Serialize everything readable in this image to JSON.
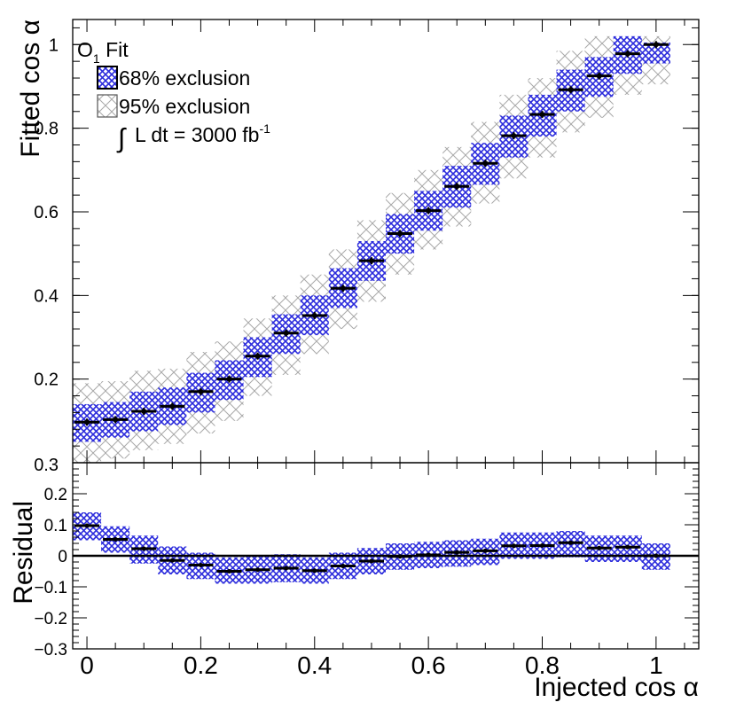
{
  "chart_data": [
    {
      "type": "scatter",
      "panel": "top",
      "title": "",
      "xlabel": "",
      "ylabel": "Fitted cos α",
      "xlim": [
        -0.025,
        1.075
      ],
      "ylim": [
        0.0,
        1.06
      ],
      "yticks": [
        0.2,
        0.4,
        0.6,
        0.8,
        1.0
      ],
      "ytick_labels": [
        "0.2",
        "0.4",
        "0.6",
        "0.8",
        "1"
      ],
      "bottom_partial_label": "0.3",
      "grid": false,
      "legend_position": "top-left",
      "legend": {
        "fit_label": "O",
        "fit_label_sub": "1",
        "fit_label_suffix": " Fit",
        "band68_label": "68% exclusion",
        "band95_label": "95% exclusion",
        "lumi_integral": "∫",
        "lumi_label": "L dt = 3000 fb",
        "lumi_sup": "-1"
      },
      "band_half_width": 0.025,
      "band68_color": "#2b2bdc",
      "band95_color": "#9a9a9a",
      "series": [
        {
          "name": "Fit",
          "x": [
            0,
            0.05,
            0.1,
            0.15,
            0.2,
            0.25,
            0.3,
            0.35,
            0.4,
            0.45,
            0.5,
            0.55,
            0.6,
            0.65,
            0.7,
            0.75,
            0.8,
            0.85,
            0.9,
            0.95,
            1.0
          ],
          "y": [
            0.097,
            0.103,
            0.123,
            0.135,
            0.17,
            0.2,
            0.255,
            0.31,
            0.352,
            0.417,
            0.483,
            0.548,
            0.603,
            0.661,
            0.716,
            0.782,
            0.833,
            0.892,
            0.925,
            0.978,
            1.0
          ],
          "band68": [
            [
              0.05,
              0.14
            ],
            [
              0.06,
              0.145
            ],
            [
              0.075,
              0.17
            ],
            [
              0.09,
              0.18
            ],
            [
              0.12,
              0.215
            ],
            [
              0.15,
              0.245
            ],
            [
              0.205,
              0.3
            ],
            [
              0.26,
              0.355
            ],
            [
              0.305,
              0.4
            ],
            [
              0.37,
              0.465
            ],
            [
              0.435,
              0.53
            ],
            [
              0.5,
              0.595
            ],
            [
              0.555,
              0.65
            ],
            [
              0.61,
              0.71
            ],
            [
              0.665,
              0.765
            ],
            [
              0.73,
              0.83
            ],
            [
              0.78,
              0.88
            ],
            [
              0.84,
              0.94
            ],
            [
              0.875,
              0.97
            ],
            [
              0.93,
              1.02
            ],
            [
              0.955,
              1.005
            ]
          ],
          "band95": [
            [
              0.0,
              0.19
            ],
            [
              0.01,
              0.195
            ],
            [
              0.03,
              0.22
            ],
            [
              0.045,
              0.225
            ],
            [
              0.07,
              0.265
            ],
            [
              0.1,
              0.29
            ],
            [
              0.16,
              0.345
            ],
            [
              0.21,
              0.4
            ],
            [
              0.26,
              0.45
            ],
            [
              0.32,
              0.51
            ],
            [
              0.385,
              0.58
            ],
            [
              0.45,
              0.645
            ],
            [
              0.51,
              0.7
            ],
            [
              0.565,
              0.755
            ],
            [
              0.62,
              0.815
            ],
            [
              0.68,
              0.88
            ],
            [
              0.73,
              0.92
            ],
            [
              0.79,
              0.985
            ],
            [
              0.825,
              1.02
            ],
            [
              0.88,
              1.02
            ],
            [
              0.905,
              1.02
            ]
          ]
        }
      ]
    },
    {
      "type": "scatter",
      "panel": "bottom",
      "title": "",
      "xlabel": "Injected cos α",
      "ylabel": "Residual",
      "xlim": [
        -0.025,
        1.075
      ],
      "ylim": [
        -0.3,
        0.3
      ],
      "yticks": [
        -0.3,
        -0.2,
        -0.1,
        0,
        0.1,
        0.2
      ],
      "ytick_labels": [
        "−0.3",
        "−0.2",
        "−0.1",
        "0",
        "0.1",
        "0.2"
      ],
      "xticks": [
        0,
        0.2,
        0.4,
        0.6,
        0.8,
        1
      ],
      "xtick_labels": [
        "0",
        "0.2",
        "0.4",
        "0.6",
        "0.8",
        "1"
      ],
      "grid": false,
      "reference_line": 0,
      "band_half_width": 0.025,
      "band_color": "#2b2bdc",
      "series": [
        {
          "name": "Residual",
          "x": [
            0,
            0.05,
            0.1,
            0.15,
            0.2,
            0.25,
            0.3,
            0.35,
            0.4,
            0.45,
            0.5,
            0.55,
            0.6,
            0.65,
            0.7,
            0.75,
            0.8,
            0.85,
            0.9,
            0.95,
            1.0
          ],
          "y": [
            0.097,
            0.053,
            0.023,
            -0.015,
            -0.03,
            -0.05,
            -0.045,
            -0.04,
            -0.048,
            -0.033,
            -0.017,
            -0.002,
            0.003,
            0.011,
            0.016,
            0.032,
            0.033,
            0.042,
            0.025,
            0.028,
            0.0
          ],
          "band": [
            [
              0.05,
              0.14
            ],
            [
              0.01,
              0.095
            ],
            [
              -0.025,
              0.065
            ],
            [
              -0.06,
              0.03
            ],
            [
              -0.075,
              0.01
            ],
            [
              -0.09,
              -0.005
            ],
            [
              -0.09,
              0.0
            ],
            [
              -0.085,
              0.005
            ],
            [
              -0.09,
              -0.005
            ],
            [
              -0.075,
              0.01
            ],
            [
              -0.06,
              0.025
            ],
            [
              -0.045,
              0.04
            ],
            [
              -0.04,
              0.045
            ],
            [
              -0.035,
              0.05
            ],
            [
              -0.03,
              0.055
            ],
            [
              -0.01,
              0.075
            ],
            [
              -0.01,
              0.075
            ],
            [
              -0.005,
              0.08
            ],
            [
              -0.02,
              0.065
            ],
            [
              -0.02,
              0.065
            ],
            [
              -0.045,
              0.04
            ]
          ]
        }
      ]
    }
  ]
}
